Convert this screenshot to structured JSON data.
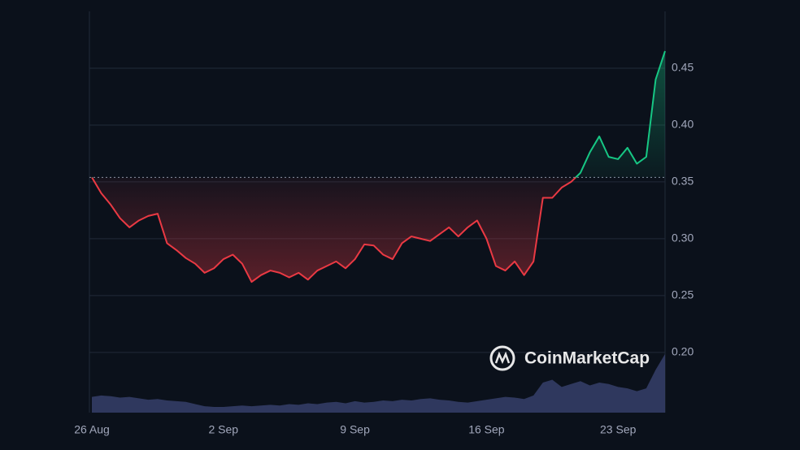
{
  "chart_data": {
    "type": "baseline-line",
    "categories": [
      "26 Aug",
      null,
      null,
      null,
      null,
      null,
      null,
      null,
      null,
      null,
      null,
      null,
      null,
      null,
      "2 Sep",
      null,
      null,
      null,
      null,
      null,
      null,
      null,
      null,
      null,
      null,
      null,
      null,
      null,
      "9 Sep",
      null,
      null,
      null,
      null,
      null,
      null,
      null,
      null,
      null,
      null,
      null,
      null,
      null,
      "16 Sep",
      null,
      null,
      null,
      null,
      null,
      null,
      null,
      null,
      null,
      null,
      null,
      null,
      null,
      "23 Sep",
      null,
      null,
      null,
      null,
      null
    ],
    "series": [
      {
        "name": "Price",
        "color_up": "#16c784",
        "color_down": "#ea3943",
        "values": [
          0.354,
          0.34,
          0.33,
          0.318,
          0.31,
          0.316,
          0.32,
          0.322,
          0.296,
          0.29,
          0.283,
          0.278,
          0.27,
          0.274,
          0.282,
          0.286,
          0.278,
          0.262,
          0.268,
          0.272,
          0.27,
          0.266,
          0.27,
          0.264,
          0.272,
          0.276,
          0.28,
          0.274,
          0.282,
          0.295,
          0.294,
          0.286,
          0.282,
          0.296,
          0.302,
          0.3,
          0.298,
          0.304,
          0.31,
          0.302,
          0.31,
          0.316,
          0.3,
          0.276,
          0.272,
          0.28,
          0.268,
          0.28,
          0.336,
          0.336,
          0.345,
          0.35,
          0.358,
          0.376,
          0.39,
          0.372,
          0.37,
          0.38,
          0.366,
          0.372,
          0.44,
          0.465
        ]
      },
      {
        "name": "Volume",
        "color": "#36406a",
        "axis": "y2",
        "values": [
          22,
          24,
          23,
          21,
          22,
          20,
          18,
          19,
          17,
          16,
          15,
          12,
          9,
          8,
          8,
          9,
          10,
          9,
          10,
          11,
          10,
          12,
          11,
          13,
          12,
          14,
          15,
          13,
          16,
          14,
          15,
          17,
          16,
          18,
          17,
          19,
          20,
          18,
          17,
          15,
          14,
          16,
          18,
          20,
          22,
          21,
          19,
          24,
          42,
          46,
          36,
          40,
          44,
          38,
          42,
          40,
          36,
          34,
          30,
          34,
          60,
          82
        ]
      }
    ],
    "baseline": 0.354,
    "ylim": [
      0.147,
      0.5
    ],
    "yticks": [
      {
        "value": 0.2,
        "label": "0.20"
      },
      0.25,
      {
        "value": 0.3,
        "label": "0.30"
      },
      0.35,
      {
        "value": 0.4,
        "label": "0.40"
      },
      0.45
    ],
    "y2lim": [
      0,
      100
    ],
    "grid": true,
    "watermark": "CoinMarketCap"
  }
}
